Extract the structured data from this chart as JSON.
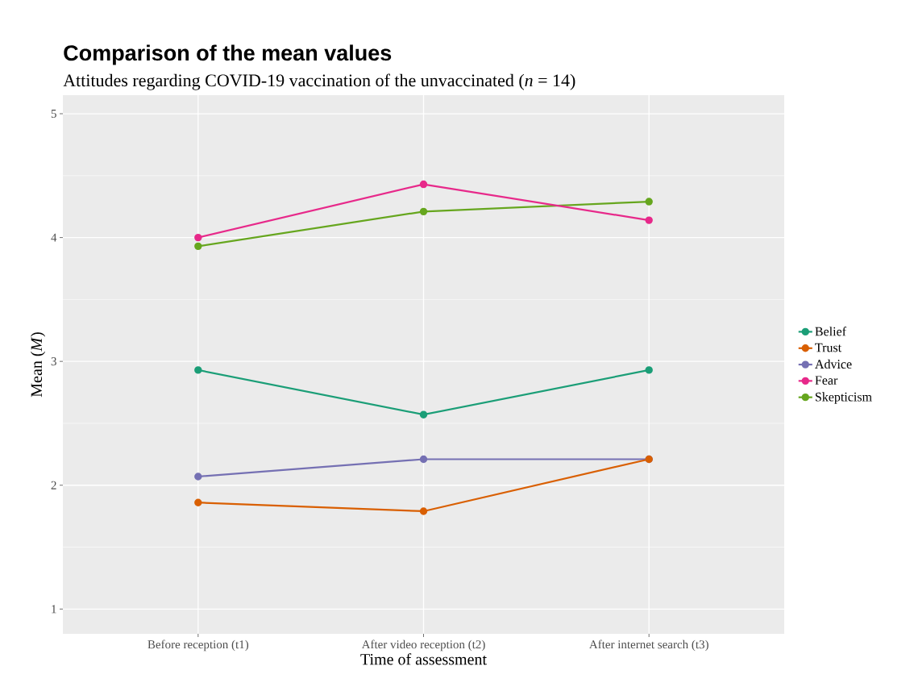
{
  "chart_data": {
    "type": "line",
    "title": "Comparison of the mean values",
    "subtitle": "Attitudes regarding COVID-19 vaccination of the unvaccinated (*n* = 14)",
    "xlabel": "Time of assessment",
    "ylabel": "Mean (*M*)",
    "categories": [
      "Before reception (t1)",
      "After video reception (t2)",
      "After internet search (t3)"
    ],
    "series": [
      {
        "name": "Belief",
        "color": "#1b9e77",
        "values": [
          2.93,
          2.57,
          2.93
        ]
      },
      {
        "name": "Trust",
        "color": "#d95f02",
        "values": [
          1.86,
          1.79,
          2.21
        ]
      },
      {
        "name": "Advice",
        "color": "#7570b3",
        "values": [
          2.07,
          2.21,
          2.21
        ]
      },
      {
        "name": "Fear",
        "color": "#e7298a",
        "values": [
          4.0,
          4.43,
          4.14
        ]
      },
      {
        "name": "Skepticism",
        "color": "#66a61e",
        "values": [
          3.93,
          4.21,
          4.29
        ]
      }
    ],
    "ylim": [
      0.8,
      5.15
    ],
    "yticks": [
      1,
      2,
      3,
      4,
      5
    ],
    "grid": true,
    "legend": "right",
    "marker": "circle",
    "line_style": "solid"
  }
}
